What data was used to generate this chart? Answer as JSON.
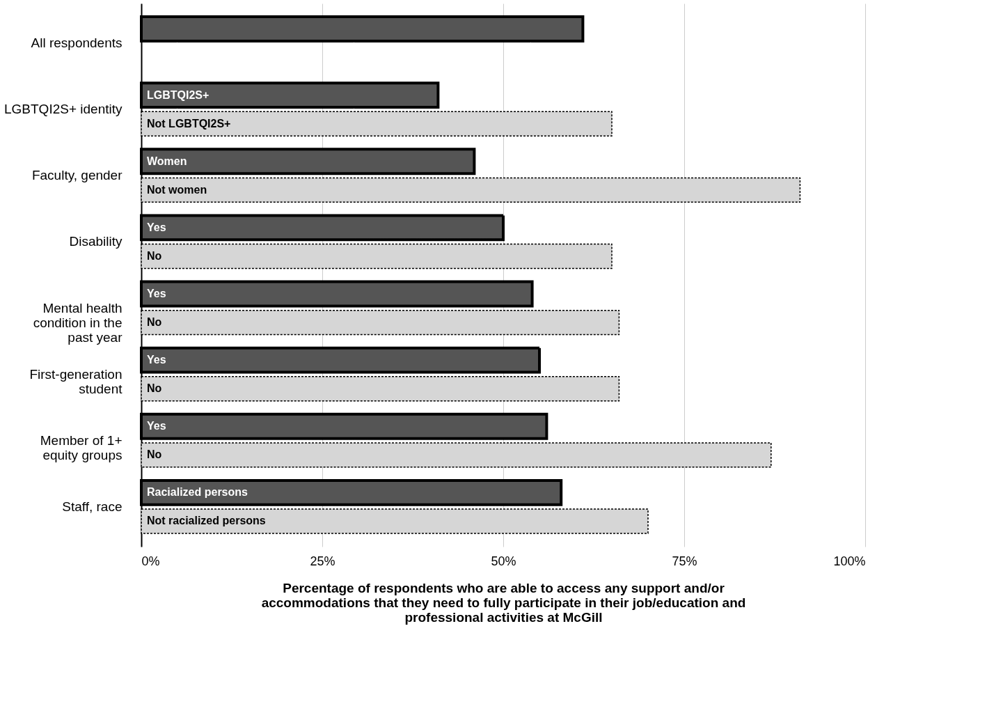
{
  "chart_data": {
    "type": "bar",
    "orientation": "horizontal",
    "xlabel": "Percentage of respondents who are able to access any support and/or accommodations that they need to fully participate in their job/education and professional activities at McGill",
    "categories": [
      "All respondents",
      "LGBTQI2S+ identity",
      "Faculty, gender",
      "Disability",
      "Mental health condition in the past year",
      "First-generation student",
      "Member of 1+ equity groups",
      "Staff, race"
    ],
    "series": [
      {
        "color": "#555555",
        "line_style": "solid",
        "values": [
          61,
          41,
          46,
          50,
          54,
          55,
          56,
          58
        ],
        "value_labels": [
          null,
          "LGBTQI2S+",
          "Women",
          "Yes",
          "Yes",
          "Yes",
          "Yes",
          "Racialized persons"
        ]
      },
      {
        "color": "#d6d6d6",
        "line_style": "dotted",
        "values": [
          null,
          65,
          91,
          65,
          66,
          66,
          87,
          70
        ],
        "value_labels": [
          null,
          "Not LGBTQI2S+",
          "Not women",
          "No",
          "No",
          "No",
          "No",
          "Not racialized persons"
        ]
      }
    ],
    "xlim": [
      0,
      100
    ],
    "xticks": [
      {
        "value": 0,
        "label": "0%"
      },
      {
        "value": 25,
        "label": "25%"
      },
      {
        "value": 50,
        "label": "50%"
      },
      {
        "value": 75,
        "label": "75%"
      },
      {
        "value": 100,
        "label": "100%"
      }
    ],
    "grid": "x",
    "legend": false
  }
}
